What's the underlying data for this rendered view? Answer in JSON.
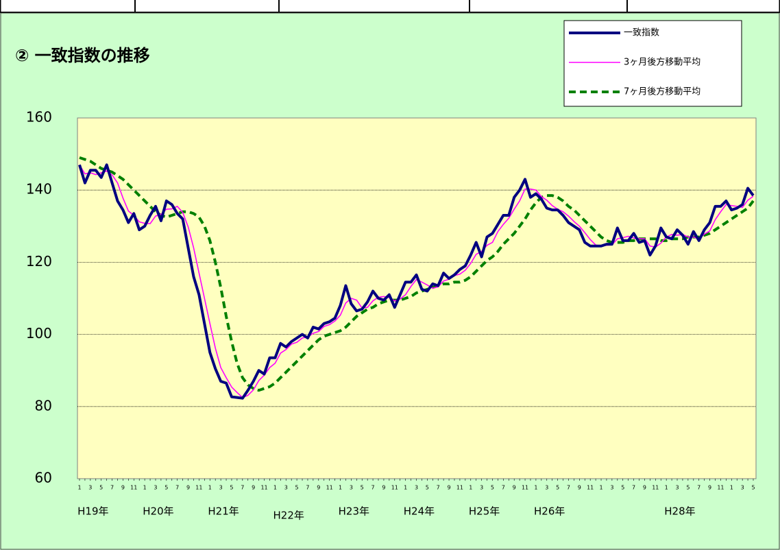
{
  "chart_data": {
    "type": "line",
    "title": "② 一致指数の推移",
    "categories": [
      "1",
      null,
      "3",
      null,
      "5",
      null,
      "7",
      null,
      "9",
      null,
      "11",
      null,
      "1",
      null,
      "3",
      null,
      "5",
      null,
      "7",
      null,
      "9",
      null,
      "11",
      null,
      "1",
      null,
      "3",
      null,
      "5",
      null,
      "7",
      null,
      "9",
      null,
      "11",
      null,
      "1",
      null,
      "3",
      null,
      "5",
      null,
      "7",
      null,
      "9",
      null,
      "11",
      null,
      "1",
      null,
      "3",
      null,
      "5",
      null,
      "7",
      null,
      "9",
      null,
      "11",
      null,
      "1",
      null,
      "3",
      null,
      "5",
      null,
      "7",
      null,
      "9",
      null,
      "11",
      null,
      "1",
      null,
      "3",
      null,
      "5",
      null,
      "7",
      null,
      "9",
      null,
      "11",
      null,
      "1",
      null,
      "3",
      null,
      "5",
      null,
      "7",
      null,
      "9",
      null,
      "11",
      null,
      "1",
      null,
      "3",
      null,
      "5",
      null,
      "7",
      null,
      "9",
      null,
      "11",
      null,
      "1",
      null,
      "3",
      null,
      "5",
      null,
      "7",
      null,
      "9",
      null,
      "11",
      null,
      "1",
      null,
      "3",
      null,
      "5"
    ],
    "year_labels": [
      "H19年",
      "H20年",
      "H21年",
      "H22年",
      "H23年",
      "H24年",
      "H25年",
      "H26年",
      null,
      "H28年",
      null
    ],
    "series": [
      {
        "name": "一致指数",
        "color": "#000080",
        "style": "solid",
        "width": 4,
        "values": [
          147,
          142,
          145.5,
          145.5,
          143.5,
          147,
          142,
          137,
          134.5,
          131,
          133.5,
          129,
          130,
          133,
          135.5,
          131.5,
          137,
          136,
          133.5,
          132,
          124,
          116,
          111,
          103,
          95,
          90.5,
          87,
          86.5,
          82.7,
          82.5,
          82.3,
          84.5,
          87,
          90,
          89,
          93.5,
          93.5,
          97.5,
          96.5,
          98,
          99,
          100,
          99,
          102,
          101.5,
          103,
          103.5,
          104.5,
          108,
          113.5,
          108.5,
          106.5,
          107,
          109,
          112,
          110,
          109.5,
          111,
          107.5,
          111,
          114.5,
          114.5,
          116.5,
          112.5,
          112,
          114,
          113.5,
          117,
          115.5,
          116.5,
          118,
          119,
          122,
          125.5,
          121.5,
          127,
          128,
          130.5,
          133,
          133,
          138,
          140,
          143,
          138,
          139,
          137.5,
          135,
          134.5,
          134.5,
          133,
          131,
          130,
          129,
          125.5,
          124.5,
          124.5,
          124.5,
          125,
          125,
          129.5,
          126,
          126,
          128,
          125.5,
          126,
          122,
          124.5,
          129.5,
          127,
          126.5,
          129,
          127.5,
          125,
          128.5,
          126,
          129,
          131,
          135.5,
          135.5,
          137,
          134.5,
          135,
          136,
          140.5,
          138.5
        ]
      },
      {
        "name": "3ヶ月後方移動平均",
        "color": "#ff00ff",
        "style": "solid",
        "width": 1.6,
        "values": [
          147,
          144.5,
          144.8,
          144.3,
          144.8,
          145.3,
          144.2,
          142,
          137.8,
          134.2,
          133,
          131.2,
          130.8,
          130.7,
          132.8,
          133.3,
          134.7,
          134.8,
          135.5,
          133.8,
          129.8,
          124,
          117,
          110,
          103,
          96.2,
          90.8,
          88,
          85.4,
          83.9,
          82.5,
          83.1,
          84.6,
          87.2,
          88.7,
          90.8,
          92,
          94.8,
          95.8,
          97.3,
          97.8,
          99,
          99.3,
          100.3,
          100.8,
          102.2,
          102.7,
          103.7,
          105.3,
          108.7,
          110,
          109.5,
          107.3,
          107.5,
          109.3,
          110.3,
          110.5,
          110.2,
          109.3,
          109.8,
          111,
          113.3,
          115.2,
          114.5,
          113.7,
          112.8,
          113.2,
          114.8,
          115.3,
          116.3,
          116.7,
          117.8,
          119.7,
          122.2,
          123,
          124.7,
          125.5,
          128.5,
          130.5,
          132.2,
          134.7,
          137,
          140.3,
          140.3,
          140,
          138.2,
          137.2,
          135.7,
          134.7,
          134,
          132.8,
          131.3,
          130,
          128.2,
          126.3,
          124.8,
          124.5,
          124.7,
          124.8,
          126.5,
          126.8,
          127.2,
          126.7,
          126.5,
          126.5,
          124.5,
          124.2,
          125.3,
          127,
          127.7,
          127.5,
          127.7,
          127,
          127,
          126.5,
          127.8,
          128.7,
          131.8,
          134,
          136,
          135.7,
          135.5,
          135.2,
          137.2,
          138.3
        ]
      },
      {
        "name": "7ヶ月後方移動平均",
        "color": "#008000",
        "style": "dashed",
        "width": 4,
        "values": [
          149,
          148.5,
          148,
          147,
          146,
          145.5,
          145,
          144,
          143,
          141.5,
          140,
          138.5,
          137,
          135.5,
          134,
          133,
          132.5,
          133,
          133.5,
          134,
          134,
          133.5,
          132.5,
          130,
          126,
          120,
          113,
          105,
          98,
          92,
          88,
          86,
          85,
          84.5,
          85,
          85.5,
          86.5,
          88,
          89.5,
          91,
          92.5,
          94,
          95.5,
          97,
          98.5,
          99.5,
          100,
          100.5,
          101,
          102,
          103.5,
          105,
          106,
          107,
          107.5,
          108.5,
          109,
          109.5,
          109.5,
          109.5,
          110,
          110.5,
          111.5,
          112,
          112.5,
          113,
          113.5,
          114,
          114,
          114.5,
          114.5,
          115,
          116,
          117.5,
          119,
          120.5,
          121.5,
          123,
          125,
          126.5,
          128,
          130,
          132,
          134.5,
          136.5,
          138,
          138.5,
          138.5,
          138,
          137,
          135.5,
          134.5,
          133,
          131.5,
          130,
          128.5,
          127,
          126,
          125.5,
          125.5,
          125.5,
          126,
          126,
          126.5,
          126.5,
          126.5,
          126.5,
          126,
          126,
          126.5,
          126.5,
          126.5,
          127,
          127,
          127,
          127.5,
          128,
          129,
          130,
          131,
          132,
          133,
          134,
          135,
          137
        ]
      }
    ],
    "ylim": [
      60,
      160
    ],
    "yticks": [
      60,
      80,
      100,
      120,
      140,
      160
    ],
    "grid": true,
    "legend": "upper right"
  }
}
